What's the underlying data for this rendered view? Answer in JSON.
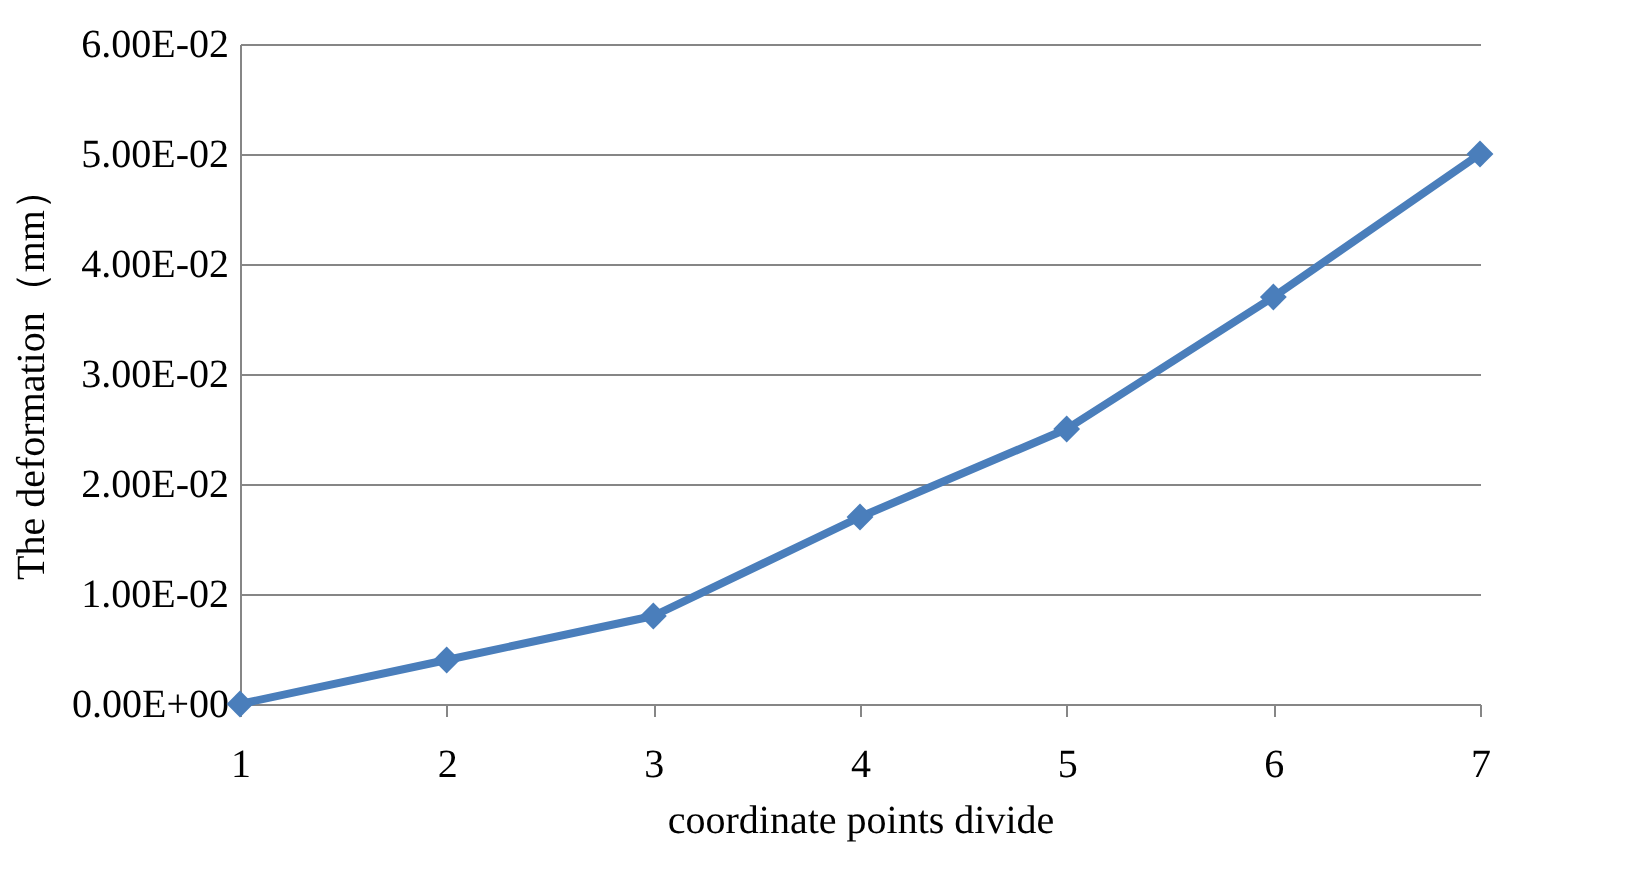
{
  "chart_data": {
    "type": "line",
    "xlabel": "coordinate points divide",
    "ylabel": "The deformation（mm）",
    "x": [
      1,
      2,
      3,
      4,
      5,
      6,
      7
    ],
    "series": [
      {
        "color": "#4a7ebb",
        "values": [
          0,
          0.004,
          0.008,
          0.017,
          0.025,
          0.037,
          0.05
        ]
      }
    ],
    "xlim": [
      1,
      7
    ],
    "xticks": [
      1,
      2,
      3,
      4,
      5,
      6,
      7
    ],
    "ylim": [
      0,
      0.06
    ],
    "yticks": [
      {
        "value": 0,
        "label": "0.00E+00"
      },
      {
        "value": 0.01,
        "label": "1.00E-02"
      },
      {
        "value": 0.02,
        "label": "2.00E-02"
      },
      {
        "value": 0.03,
        "label": "3.00E-02"
      },
      {
        "value": 0.04,
        "label": "4.00E-02"
      },
      {
        "value": 0.05,
        "label": "5.00E-02"
      },
      {
        "value": 0.06,
        "label": "6.00E-02"
      }
    ],
    "grid": "y",
    "marker": "diamond",
    "line_style": "solid"
  }
}
